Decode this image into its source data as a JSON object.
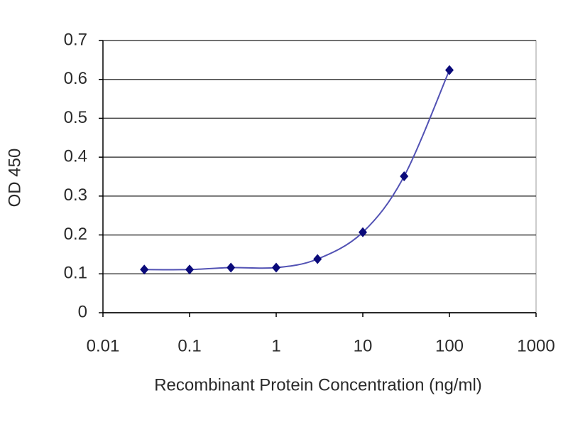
{
  "chart_data": {
    "type": "line",
    "x_label": "Recombinant Protein Concentration (ng/ml)",
    "y_label": "OD 450",
    "x": [
      0.03,
      0.1,
      0.3,
      1,
      3,
      10,
      30,
      100
    ],
    "values": [
      0.111,
      0.111,
      0.116,
      0.116,
      0.138,
      0.207,
      0.351,
      0.624
    ],
    "color": "#5252b4",
    "marker_color": "#0a0a7a",
    "xlim": [
      0.01,
      1000
    ],
    "xticks": [
      0.01,
      0.1,
      1,
      10,
      100,
      1000
    ],
    "x_log": true,
    "ylim": [
      0,
      0.7
    ],
    "yticks": [
      0,
      0.1,
      0.2,
      0.3,
      0.4,
      0.5,
      0.6,
      0.7
    ],
    "grid": true
  }
}
